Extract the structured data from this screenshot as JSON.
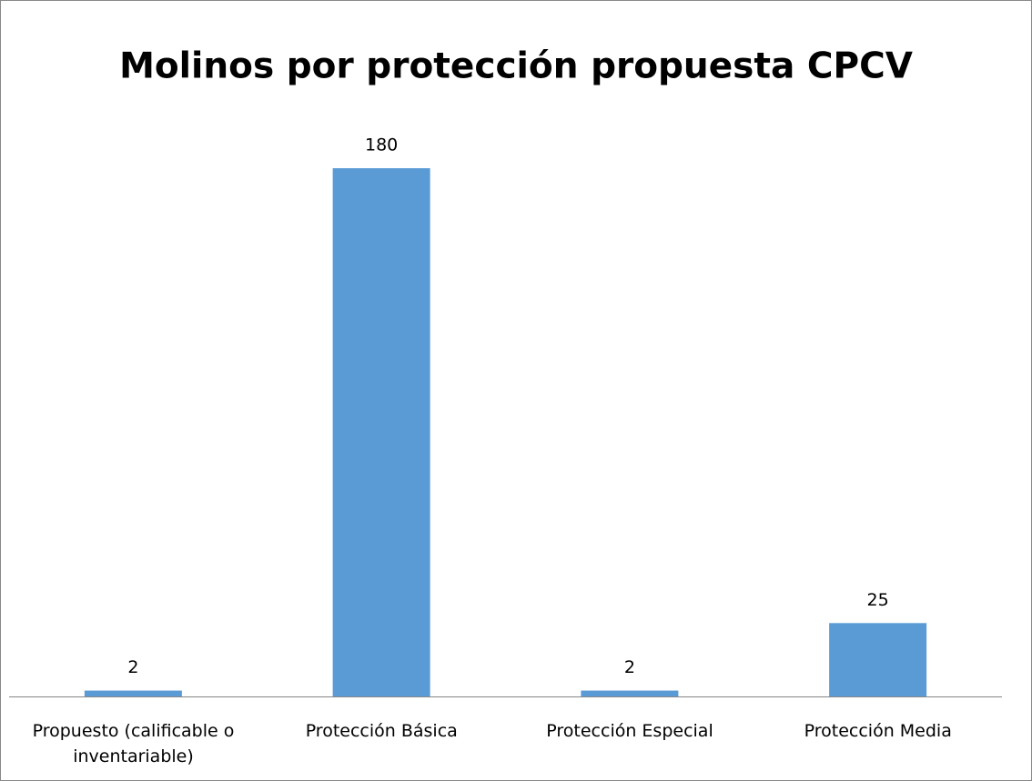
{
  "chart_data": {
    "type": "bar",
    "title": "Molinos por protección propuesta CPCV",
    "categories": [
      "Propuesto (calificable o inventariable)",
      "Protección Básica",
      "Protección Especial",
      "Protección Media"
    ],
    "values": [
      2,
      180,
      2,
      25
    ],
    "color": "#5b9bd5"
  }
}
